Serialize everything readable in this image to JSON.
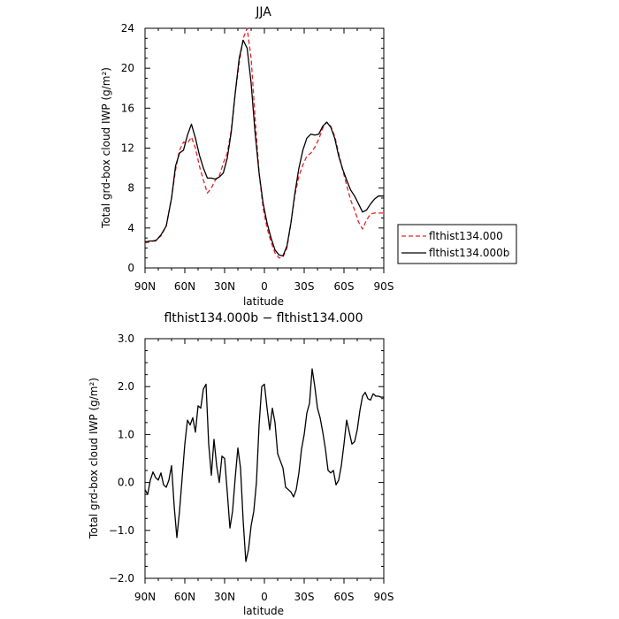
{
  "chart_data": [
    {
      "type": "line",
      "title": "JJA",
      "xlabel": "latitude",
      "ylabel": "Total grd-box cloud IWP (g/m²)",
      "xlim": [
        90,
        -90
      ],
      "ylim": [
        0,
        24
      ],
      "xticks": [
        90,
        60,
        30,
        0,
        -30,
        -60,
        -90
      ],
      "xtick_labels": [
        "90N",
        "60N",
        "30N",
        "0",
        "30S",
        "60S",
        "90S"
      ],
      "yticks": [
        0,
        4,
        8,
        12,
        16,
        20,
        24
      ],
      "ytick_labels": [
        "0",
        "4",
        "8",
        "12",
        "16",
        "20",
        "24"
      ],
      "grid": false,
      "legend": {
        "position": "right"
      },
      "series": [
        {
          "name": "flthist134.000",
          "color": "#e8232a",
          "dash": "dashed",
          "x": [
            90,
            86,
            82,
            78,
            74,
            70,
            67,
            64,
            61,
            58,
            55,
            52,
            49,
            46,
            43,
            40,
            37,
            34,
            31,
            28,
            25,
            22,
            19,
            16,
            13,
            10,
            7,
            4,
            1,
            -2,
            -5,
            -8,
            -11,
            -14,
            -17,
            -20,
            -23,
            -26,
            -29,
            -32,
            -35,
            -38,
            -41,
            -44,
            -47,
            -50,
            -53,
            -56,
            -59,
            -62,
            -65,
            -68,
            -71,
            -74,
            -77,
            -80,
            -83,
            -86,
            -88,
            -90
          ],
          "y": [
            2.5,
            2.6,
            2.8,
            3.2,
            4.2,
            7.0,
            9.8,
            11.8,
            12.6,
            12.5,
            13.1,
            12.0,
            10.2,
            8.8,
            7.5,
            8.0,
            8.8,
            9.2,
            10.5,
            11.5,
            13.8,
            17.5,
            20.5,
            23.0,
            24.0,
            21.0,
            15.0,
            9.5,
            6.0,
            4.0,
            2.6,
            1.5,
            1.0,
            1.1,
            2.0,
            4.5,
            7.3,
            9.2,
            10.3,
            11.2,
            11.5,
            12.1,
            12.9,
            14.0,
            14.6,
            14.2,
            13.2,
            11.5,
            9.8,
            8.3,
            6.8,
            5.8,
            4.6,
            3.9,
            4.8,
            5.4,
            5.5,
            5.5,
            5.5,
            5.5
          ]
        },
        {
          "name": "flthist134.000b",
          "color": "#000000",
          "dash": "solid",
          "x": [
            90,
            86,
            82,
            78,
            74,
            70,
            67,
            64,
            61,
            58,
            55,
            52,
            49,
            46,
            43,
            40,
            37,
            34,
            31,
            28,
            25,
            22,
            19,
            16,
            13,
            10,
            7,
            4,
            1,
            -2,
            -5,
            -8,
            -11,
            -14,
            -17,
            -20,
            -23,
            -26,
            -29,
            -32,
            -35,
            -38,
            -41,
            -44,
            -47,
            -50,
            -53,
            -56,
            -59,
            -62,
            -65,
            -68,
            -71,
            -74,
            -77,
            -80,
            -83,
            -86,
            -88,
            -90
          ],
          "y": [
            2.6,
            2.7,
            2.7,
            3.3,
            4.2,
            7.0,
            10.2,
            11.5,
            11.8,
            13.3,
            14.4,
            13.0,
            11.3,
            10.0,
            9.0,
            9.0,
            8.9,
            9.1,
            9.5,
            11.0,
            13.6,
            17.5,
            21.0,
            22.8,
            22.0,
            18.5,
            13.5,
            9.5,
            6.5,
            4.5,
            3.0,
            1.8,
            1.3,
            1.2,
            2.2,
            4.5,
            7.5,
            10.0,
            11.8,
            13.0,
            13.4,
            13.3,
            13.4,
            14.2,
            14.6,
            14.1,
            13.0,
            11.2,
            9.9,
            8.8,
            7.8,
            7.2,
            6.4,
            5.6,
            5.8,
            6.4,
            6.9,
            7.2,
            7.2,
            7.2
          ]
        }
      ]
    },
    {
      "type": "line",
      "title": "flthist134.000b − flthist134.000",
      "xlabel": "latitude",
      "ylabel": "Total grd-box cloud IWP (g/m²)",
      "xlim": [
        90,
        -90
      ],
      "ylim": [
        -2.0,
        3.0
      ],
      "xticks": [
        90,
        60,
        30,
        0,
        -30,
        -60,
        -90
      ],
      "xtick_labels": [
        "90N",
        "60N",
        "30N",
        "0",
        "30S",
        "60S",
        "90S"
      ],
      "yticks": [
        -2.0,
        -1.0,
        0.0,
        1.0,
        2.0,
        3.0
      ],
      "ytick_labels": [
        "−2.0",
        "−1.0",
        "0.0",
        "1.0",
        "2.0",
        "3.0"
      ],
      "grid": false,
      "series": [
        {
          "color": "#000000",
          "x": [
            90,
            88,
            86,
            84,
            82,
            80,
            78,
            76,
            74,
            72,
            70,
            68,
            66,
            64,
            62,
            60,
            58,
            56,
            54,
            52,
            50,
            48,
            46,
            44,
            42,
            40,
            38,
            36,
            34,
            32,
            30,
            28,
            26,
            24,
            22,
            20,
            18,
            16,
            14,
            12,
            10,
            8,
            6,
            4,
            2,
            0,
            -2,
            -4,
            -6,
            -8,
            -10,
            -12,
            -14,
            -16,
            -18,
            -20,
            -22,
            -24,
            -26,
            -28,
            -30,
            -32,
            -34,
            -36,
            -38,
            -40,
            -42,
            -44,
            -46,
            -48,
            -50,
            -52,
            -54,
            -56,
            -58,
            -60,
            -62,
            -64,
            -66,
            -68,
            -70,
            -72,
            -74,
            -76,
            -78,
            -80,
            -82,
            -84,
            -86,
            -88,
            -90
          ],
          "y": [
            -0.15,
            -0.25,
            0.05,
            0.22,
            0.1,
            0.05,
            0.2,
            -0.05,
            -0.1,
            0.05,
            0.35,
            -0.5,
            -1.15,
            -0.6,
            0.1,
            0.8,
            1.3,
            1.2,
            1.35,
            1.05,
            1.6,
            1.55,
            1.95,
            2.05,
            0.8,
            0.15,
            0.9,
            0.35,
            0.0,
            0.55,
            0.5,
            -0.2,
            -0.95,
            -0.6,
            0.1,
            0.72,
            0.3,
            -0.8,
            -1.65,
            -1.4,
            -0.9,
            -0.6,
            0.0,
            1.2,
            2.0,
            2.05,
            1.55,
            1.1,
            1.55,
            1.25,
            0.6,
            0.45,
            0.3,
            -0.1,
            -0.15,
            -0.2,
            -0.3,
            -0.15,
            0.2,
            0.7,
            1.0,
            1.45,
            1.65,
            2.37,
            2.0,
            1.55,
            1.35,
            1.05,
            0.7,
            0.25,
            0.2,
            0.25,
            -0.05,
            0.05,
            0.35,
            0.8,
            1.3,
            1.05,
            0.8,
            0.85,
            1.1,
            1.5,
            1.8,
            1.88,
            1.75,
            1.72,
            1.85,
            1.8,
            1.8,
            1.78,
            1.78
          ]
        }
      ]
    }
  ]
}
